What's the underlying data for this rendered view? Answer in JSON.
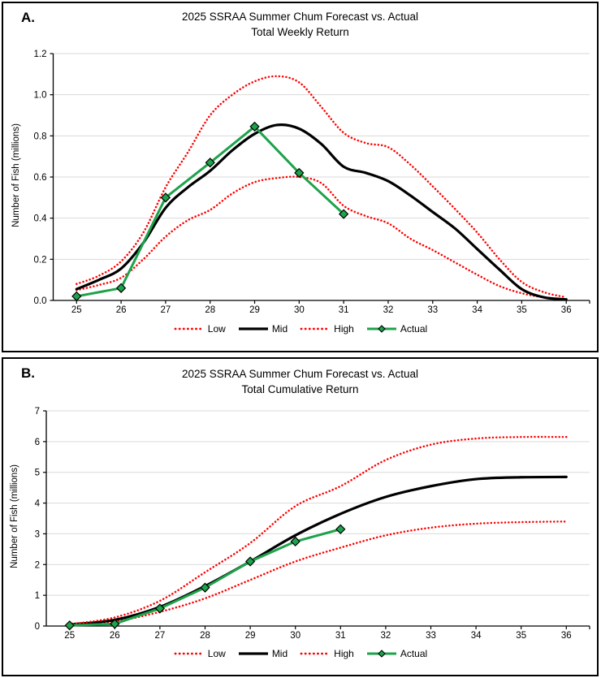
{
  "colors": {
    "background": "#ffffff",
    "border": "#000000",
    "grid": "#d9d9d9",
    "axis": "#000000",
    "text": "#000000",
    "forecast_band": "#ff0000",
    "mid_line": "#000000",
    "actual_line": "#1ea24b"
  },
  "chart_data": [
    {
      "type": "line",
      "panel_label": "A.",
      "title": "2025 SSRAA Summer Chum Forecast vs. Actual",
      "subtitle": "Total Weekly Return",
      "xlabel": "",
      "ylabel": "Number of Fish (millions)",
      "xlim": [
        25,
        36
      ],
      "ylim": [
        0,
        1.2
      ],
      "x_ticks": [
        25,
        26,
        27,
        28,
        29,
        30,
        31,
        32,
        33,
        34,
        35,
        36
      ],
      "y_ticks": [
        0,
        0.2,
        0.4,
        0.6,
        0.8,
        1.0,
        1.2
      ],
      "y_tick_labels": [
        "0.0",
        "0.2",
        "0.4",
        "0.6",
        "0.8",
        "1.0",
        "1.2"
      ],
      "grid": true,
      "legend_position": "bottom",
      "series": [
        {
          "name": "Low",
          "style": "dotted",
          "color": "#ff0000",
          "x": [
            25,
            25.5,
            26,
            26.5,
            27,
            27.5,
            28,
            28.5,
            29,
            29.5,
            30,
            30.5,
            31,
            31.5,
            32,
            32.5,
            33,
            33.5,
            34,
            34.5,
            35,
            35.5,
            36
          ],
          "values": [
            0.05,
            0.075,
            0.11,
            0.2,
            0.31,
            0.39,
            0.44,
            0.52,
            0.575,
            0.595,
            0.6,
            0.57,
            0.46,
            0.41,
            0.375,
            0.3,
            0.245,
            0.185,
            0.125,
            0.07,
            0.035,
            0.015,
            0.005
          ]
        },
        {
          "name": "Mid",
          "style": "solid",
          "color": "#000000",
          "x": [
            25,
            25.5,
            26,
            26.5,
            27,
            27.5,
            28,
            28.5,
            29,
            29.5,
            30,
            30.5,
            31,
            31.5,
            32,
            32.5,
            33,
            33.5,
            34,
            34.5,
            35,
            35.5,
            36
          ],
          "values": [
            0.055,
            0.1,
            0.155,
            0.28,
            0.45,
            0.55,
            0.63,
            0.73,
            0.81,
            0.853,
            0.835,
            0.76,
            0.65,
            0.62,
            0.58,
            0.51,
            0.43,
            0.35,
            0.25,
            0.15,
            0.055,
            0.015,
            0.005
          ]
        },
        {
          "name": "High",
          "style": "dotted",
          "color": "#ff0000",
          "x": [
            25,
            25.5,
            26,
            26.5,
            27,
            27.5,
            28,
            28.5,
            29,
            29.5,
            30,
            30.5,
            31,
            31.5,
            32,
            32.5,
            33,
            33.5,
            34,
            34.5,
            35,
            35.5,
            36
          ],
          "values": [
            0.08,
            0.12,
            0.19,
            0.33,
            0.55,
            0.72,
            0.9,
            1.0,
            1.065,
            1.09,
            1.06,
            0.94,
            0.815,
            0.765,
            0.745,
            0.66,
            0.555,
            0.445,
            0.33,
            0.2,
            0.09,
            0.04,
            0.015
          ]
        },
        {
          "name": "Actual",
          "style": "solid-diamond",
          "color": "#1ea24b",
          "x": [
            25,
            26,
            27,
            28,
            29,
            30,
            31
          ],
          "values": [
            0.02,
            0.06,
            0.5,
            0.67,
            0.845,
            0.62,
            0.42
          ]
        }
      ]
    },
    {
      "type": "line",
      "panel_label": "B.",
      "title": "2025 SSRAA Summer Chum Forecast vs. Actual",
      "subtitle": "Total Cumulative Return",
      "xlabel": "",
      "ylabel": "Number of Fish (millions)",
      "xlim": [
        25,
        36
      ],
      "ylim": [
        0,
        7
      ],
      "x_ticks": [
        25,
        26,
        27,
        28,
        29,
        30,
        31,
        32,
        33,
        34,
        35,
        36
      ],
      "y_ticks": [
        0,
        1,
        2,
        3,
        4,
        5,
        6,
        7
      ],
      "y_tick_labels": [
        "0",
        "1",
        "2",
        "3",
        "4",
        "5",
        "6",
        "7"
      ],
      "grid": true,
      "legend_position": "bottom",
      "series": [
        {
          "name": "Low",
          "style": "dotted",
          "color": "#ff0000",
          "x": [
            25,
            26,
            27,
            28,
            29,
            30,
            31,
            32,
            33,
            34,
            35,
            36
          ],
          "values": [
            0.04,
            0.15,
            0.46,
            0.9,
            1.5,
            2.1,
            2.55,
            2.95,
            3.2,
            3.33,
            3.38,
            3.4
          ]
        },
        {
          "name": "Mid",
          "style": "solid",
          "color": "#000000",
          "x": [
            25,
            26,
            27,
            28,
            29,
            30,
            31,
            32,
            33,
            34,
            35,
            36
          ],
          "values": [
            0.05,
            0.2,
            0.62,
            1.3,
            2.1,
            2.95,
            3.65,
            4.2,
            4.55,
            4.78,
            4.84,
            4.85
          ]
        },
        {
          "name": "High",
          "style": "dotted",
          "color": "#ff0000",
          "x": [
            25,
            26,
            27,
            28,
            29,
            30,
            31,
            32,
            33,
            34,
            35,
            36
          ],
          "values": [
            0.06,
            0.28,
            0.82,
            1.75,
            2.7,
            3.9,
            4.55,
            5.4,
            5.9,
            6.1,
            6.15,
            6.15
          ]
        },
        {
          "name": "Actual",
          "style": "solid-diamond",
          "color": "#1ea24b",
          "x": [
            25,
            26,
            27,
            28,
            29,
            30,
            31
          ],
          "values": [
            0.02,
            0.07,
            0.57,
            1.25,
            2.1,
            2.75,
            3.15
          ]
        }
      ]
    }
  ]
}
